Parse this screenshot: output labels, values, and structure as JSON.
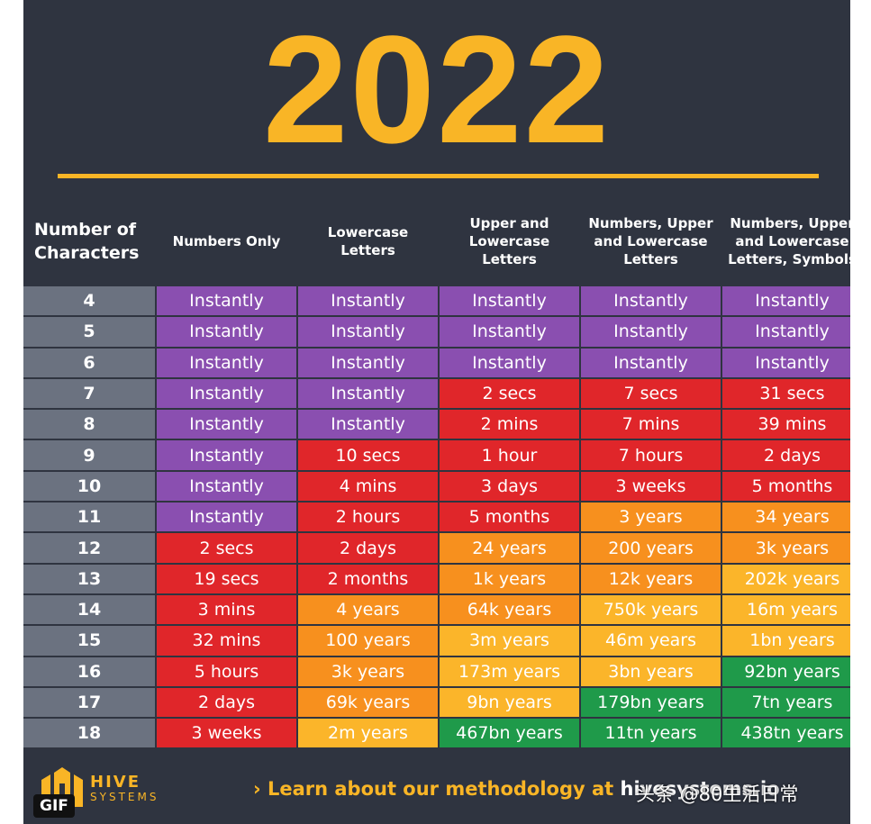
{
  "title": "2022",
  "table": {
    "headers": [
      "Number of\nCharacters",
      "Numbers Only",
      "Lowercase\nLetters",
      "Upper and\nLowercase\nLetters",
      "Numbers, Upper\nand Lowercase\nLetters",
      "Numbers, Upper\nand Lowercase\nLetters, Symbols"
    ],
    "palette": {
      "purple": "#8a4fb0",
      "red": "#e0262a",
      "orange": "#f7901e",
      "yellow": "#fbb52a",
      "green": "#1f9a4a"
    },
    "rows": [
      {
        "chars": "4",
        "cells": [
          "Instantly",
          "Instantly",
          "Instantly",
          "Instantly",
          "Instantly"
        ],
        "colors": [
          "purple",
          "purple",
          "purple",
          "purple",
          "purple"
        ]
      },
      {
        "chars": "5",
        "cells": [
          "Instantly",
          "Instantly",
          "Instantly",
          "Instantly",
          "Instantly"
        ],
        "colors": [
          "purple",
          "purple",
          "purple",
          "purple",
          "purple"
        ]
      },
      {
        "chars": "6",
        "cells": [
          "Instantly",
          "Instantly",
          "Instantly",
          "Instantly",
          "Instantly"
        ],
        "colors": [
          "purple",
          "purple",
          "purple",
          "purple",
          "purple"
        ]
      },
      {
        "chars": "7",
        "cells": [
          "Instantly",
          "Instantly",
          "2 secs",
          "7 secs",
          "31 secs"
        ],
        "colors": [
          "purple",
          "purple",
          "red",
          "red",
          "red"
        ]
      },
      {
        "chars": "8",
        "cells": [
          "Instantly",
          "Instantly",
          "2 mins",
          "7 mins",
          "39 mins"
        ],
        "colors": [
          "purple",
          "purple",
          "red",
          "red",
          "red"
        ]
      },
      {
        "chars": "9",
        "cells": [
          "Instantly",
          "10 secs",
          "1 hour",
          "7 hours",
          "2 days"
        ],
        "colors": [
          "purple",
          "red",
          "red",
          "red",
          "red"
        ]
      },
      {
        "chars": "10",
        "cells": [
          "Instantly",
          "4 mins",
          "3 days",
          "3 weeks",
          "5 months"
        ],
        "colors": [
          "purple",
          "red",
          "red",
          "red",
          "red"
        ]
      },
      {
        "chars": "11",
        "cells": [
          "Instantly",
          "2 hours",
          "5 months",
          "3 years",
          "34 years"
        ],
        "colors": [
          "purple",
          "red",
          "red",
          "orange",
          "orange"
        ]
      },
      {
        "chars": "12",
        "cells": [
          "2 secs",
          "2 days",
          "24 years",
          "200 years",
          "3k years"
        ],
        "colors": [
          "red",
          "red",
          "orange",
          "orange",
          "orange"
        ]
      },
      {
        "chars": "13",
        "cells": [
          "19 secs",
          "2 months",
          "1k years",
          "12k years",
          "202k years"
        ],
        "colors": [
          "red",
          "red",
          "orange",
          "orange",
          "yellow"
        ]
      },
      {
        "chars": "14",
        "cells": [
          "3 mins",
          "4 years",
          "64k years",
          "750k years",
          "16m years"
        ],
        "colors": [
          "red",
          "orange",
          "orange",
          "yellow",
          "yellow"
        ]
      },
      {
        "chars": "15",
        "cells": [
          "32 mins",
          "100 years",
          "3m years",
          "46m years",
          "1bn years"
        ],
        "colors": [
          "red",
          "orange",
          "yellow",
          "yellow",
          "yellow"
        ]
      },
      {
        "chars": "16",
        "cells": [
          "5 hours",
          "3k years",
          "173m years",
          "3bn years",
          "92bn years"
        ],
        "colors": [
          "red",
          "orange",
          "yellow",
          "yellow",
          "green"
        ]
      },
      {
        "chars": "17",
        "cells": [
          "2 days",
          "69k years",
          "9bn years",
          "179bn years",
          "7tn years"
        ],
        "colors": [
          "red",
          "orange",
          "yellow",
          "green",
          "green"
        ]
      },
      {
        "chars": "18",
        "cells": [
          "3 weeks",
          "2m years",
          "467bn years",
          "11tn years",
          "438tn years"
        ],
        "colors": [
          "red",
          "yellow",
          "green",
          "green",
          "green"
        ]
      }
    ]
  },
  "footer": {
    "brand": "HIVE",
    "brand_sub": "SYSTEMS",
    "learn": "› Learn about our methodology at ",
    "link": "hivesystems.io"
  },
  "watermark": "头条 @80生活日常",
  "badge": "GIF"
}
